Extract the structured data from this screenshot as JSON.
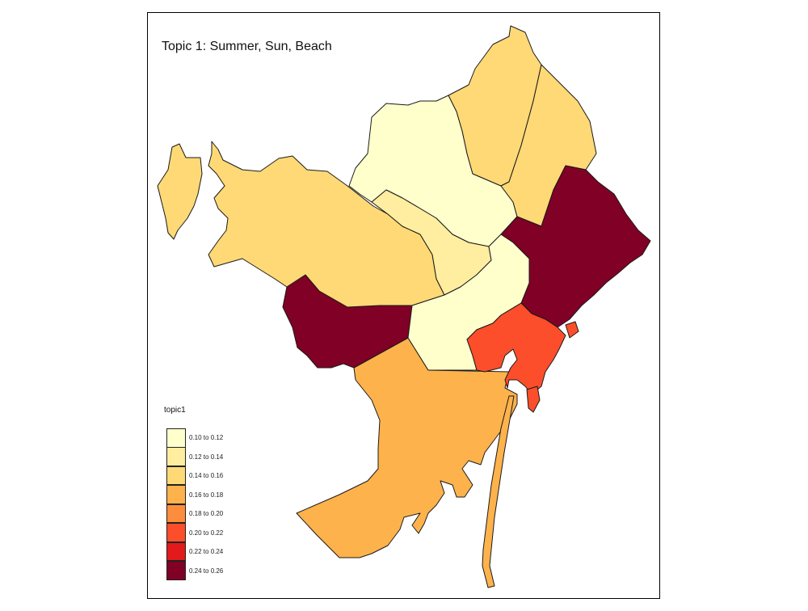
{
  "map": {
    "title": "Topic 1: Summer, Sun, Beach",
    "legend_title": "topic1",
    "legend": [
      {
        "label": "0.10 to 0.12",
        "color": "#FFFFCC"
      },
      {
        "label": "0.12 to 0.14",
        "color": "#FFEDA0"
      },
      {
        "label": "0.14 to 0.16",
        "color": "#FED976"
      },
      {
        "label": "0.16 to 0.18",
        "color": "#FEB24C"
      },
      {
        "label": "0.18 to 0.20",
        "color": "#FD8D3C"
      },
      {
        "label": "0.20 to 0.22",
        "color": "#FC4E2A"
      },
      {
        "label": "0.22 to 0.24",
        "color": "#E31A1C"
      },
      {
        "label": "0.24 to 0.26",
        "color": "#800026"
      }
    ],
    "districts": [
      {
        "id": "nw-coast-strip",
        "class": "0.14 to 0.16"
      },
      {
        "id": "west-hills",
        "class": "0.14 to 0.16"
      },
      {
        "id": "north-center",
        "class": "0.10 to 0.12"
      },
      {
        "id": "center-small",
        "class": "0.12 to 0.14"
      },
      {
        "id": "north-east-upper",
        "class": "0.14 to 0.16"
      },
      {
        "id": "north-east-lower",
        "class": "0.14 to 0.16"
      },
      {
        "id": "east-coast",
        "class": "0.24 to 0.26"
      },
      {
        "id": "west-lower",
        "class": "0.24 to 0.26"
      },
      {
        "id": "center",
        "class": "0.10 to 0.12"
      },
      {
        "id": "old-town-harbor",
        "class": "0.20 to 0.22"
      },
      {
        "id": "south-port",
        "class": "0.16 to 0.18"
      }
    ]
  }
}
